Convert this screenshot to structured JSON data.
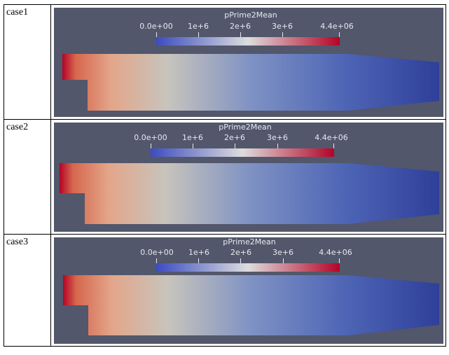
{
  "cases": [
    {
      "label": "case1",
      "colorbar": {
        "title": "pPrime2Mean",
        "ticks": [
          "0.0e+00",
          "1e+6",
          "2e+6",
          "3e+6",
          "4.4e+06"
        ]
      }
    },
    {
      "label": "case2",
      "colorbar": {
        "title": "pPrime2Mean",
        "ticks": [
          "0.0e+00",
          "1e+6",
          "2e+6",
          "3e+6",
          "4.4e+06"
        ]
      }
    },
    {
      "label": "case3",
      "colorbar": {
        "title": "pPrime2Mean",
        "ticks": [
          "0.0e+00",
          "1e+6",
          "2e+6",
          "3e+6",
          "4.4e+06"
        ]
      }
    }
  ],
  "colors": {
    "background": "#52576b",
    "scale_low": "#3b4cc0",
    "scale_mid": "#dddddd",
    "scale_high": "#b40426"
  }
}
